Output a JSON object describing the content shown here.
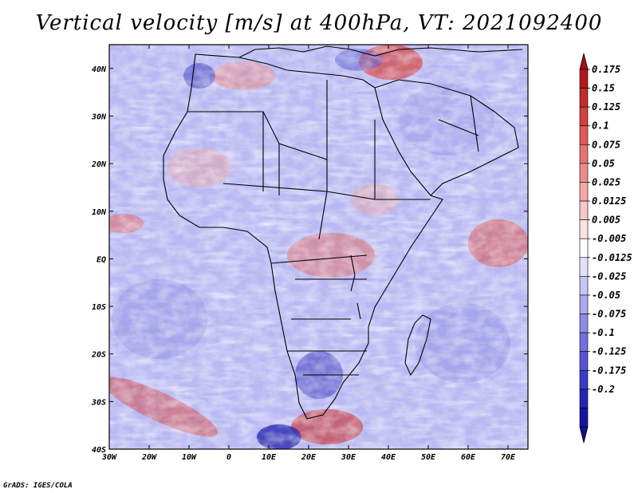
{
  "title": "Vertical velocity [m/s] at 400hPa, VT: 2021092400",
  "credit": "GrADS: IGES/COLA",
  "map": {
    "lon_ticks": [
      "30W",
      "20W",
      "10W",
      "0",
      "10E",
      "20E",
      "30E",
      "40E",
      "50E",
      "60E",
      "70E"
    ],
    "lat_ticks": [
      "40N",
      "30N",
      "20N",
      "10N",
      "EQ",
      "10S",
      "20S",
      "30S",
      "40S"
    ],
    "lon_range": [
      -30,
      75
    ],
    "lat_range": [
      -40,
      45
    ]
  },
  "colorbar": {
    "labels": [
      "0.175",
      "0.15",
      "0.125",
      "0.1",
      "0.075",
      "0.05",
      "0.025",
      "0.0125",
      "0.005",
      "-0.005",
      "-0.0125",
      "-0.025",
      "-0.05",
      "-0.075",
      "-0.1",
      "-0.125",
      "-0.175",
      "-0.2"
    ],
    "colors": [
      "#b3171e",
      "#c42c2c",
      "#d43f3f",
      "#e05858",
      "#e87373",
      "#ee8c8c",
      "#f4a8a8",
      "#f8c6c6",
      "#fce2e2",
      "#ffffff",
      "#e2e2fa",
      "#c6c6f4",
      "#a9a9ee",
      "#8c8ce8",
      "#7070e0",
      "#5555d6",
      "#3a3ac8",
      "#2424b8",
      "#1414a0"
    ],
    "top_color": "#a8101a",
    "bottom_color": "#10108f"
  }
}
